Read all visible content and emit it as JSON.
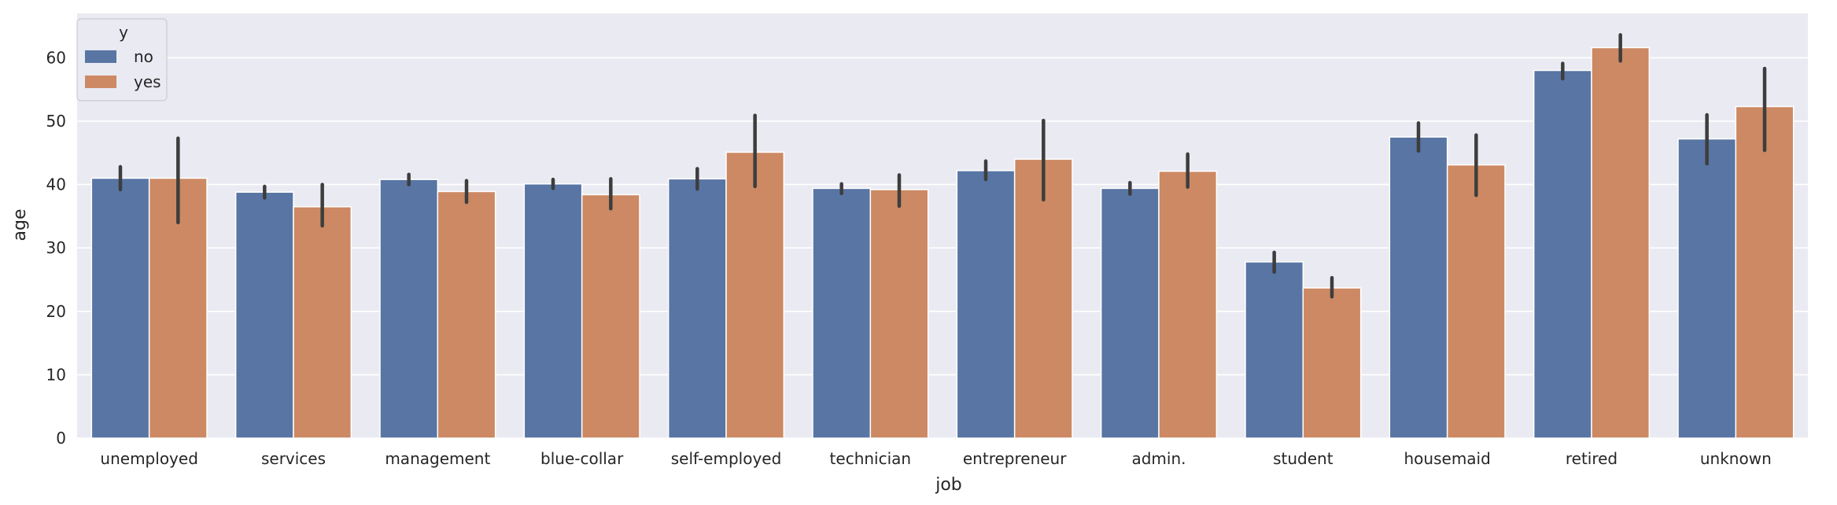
{
  "chart_data": {
    "type": "bar",
    "title": "",
    "xlabel": "job",
    "ylabel": "age",
    "ylim": [
      0,
      67
    ],
    "yticks": [
      0,
      10,
      20,
      30,
      40,
      50,
      60
    ],
    "grid": true,
    "legend": {
      "title": "y",
      "placement": "top-left"
    },
    "categories": [
      "unemployed",
      "services",
      "management",
      "blue-collar",
      "self-employed",
      "technician",
      "entrepreneur",
      "admin.",
      "student",
      "housemaid",
      "retired",
      "unknown"
    ],
    "series": [
      {
        "name": "no",
        "color": "#5875a4",
        "values": [
          41.0,
          38.8,
          40.8,
          40.1,
          40.9,
          39.4,
          42.2,
          39.4,
          27.8,
          47.5,
          58.0,
          47.2
        ],
        "ci_low": [
          39.2,
          37.9,
          40.0,
          39.4,
          39.3,
          38.6,
          40.8,
          38.5,
          26.2,
          45.3,
          56.7,
          43.3
        ],
        "ci_high": [
          42.8,
          39.7,
          41.6,
          40.8,
          42.5,
          40.1,
          43.7,
          40.3,
          29.3,
          49.7,
          59.1,
          51.0
        ]
      },
      {
        "name": "yes",
        "color": "#cc8963",
        "values": [
          41.0,
          36.5,
          38.9,
          38.4,
          45.1,
          39.2,
          44.0,
          42.1,
          23.7,
          43.1,
          61.6,
          52.3
        ],
        "ci_low": [
          34.0,
          33.5,
          37.2,
          36.2,
          39.7,
          36.6,
          37.6,
          39.6,
          22.3,
          38.3,
          59.5,
          45.4
        ],
        "ci_high": [
          47.3,
          40.0,
          40.6,
          40.9,
          50.9,
          41.5,
          50.1,
          44.8,
          25.3,
          47.8,
          63.6,
          58.3
        ]
      }
    ]
  }
}
